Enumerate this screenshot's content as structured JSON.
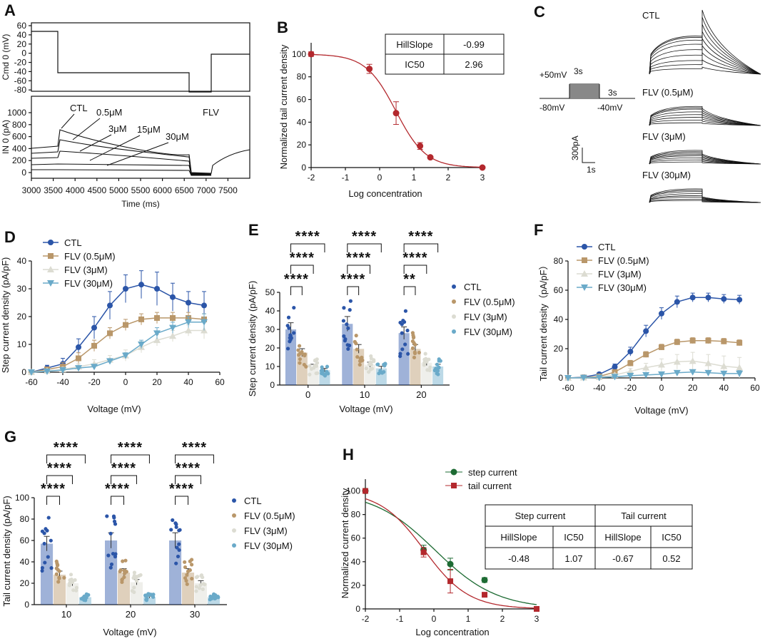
{
  "colors": {
    "ctl": "#2b55a8",
    "c05": "#b9976a",
    "c3": "#dcdcd2",
    "c30": "#6aaac9",
    "fitB": "#b3282d",
    "green": "#1d6b33",
    "red": "#b3282d"
  },
  "panels": {
    "A": {
      "label": "A",
      "top_ylabel": "Cmd 0 (mV)",
      "bot_ylabel": "IN 0 (pA)",
      "xlabel": "Time (ms)",
      "top_yticks": [
        "60",
        "40",
        "20",
        "0",
        "-20",
        "-40",
        "-60",
        "-80"
      ],
      "bot_yticks": [
        "1000",
        "800",
        "600",
        "400",
        "200",
        "0"
      ],
      "xticks": [
        "3000",
        "3500",
        "4000",
        "4500",
        "5000",
        "5500",
        "6000",
        "6500",
        "7000",
        "7500"
      ],
      "annot": {
        "ctl": "CTL",
        "c05": "0.5μM",
        "c3": "3μM",
        "c15": "15μM",
        "c30": "30μM",
        "flv": "FLV"
      }
    },
    "B": {
      "label": "B",
      "xlabel": "Log concentration",
      "ylabel": "Normalized tail current density",
      "table": [
        [
          "HillSlope",
          "-0.99"
        ],
        [
          "IC50",
          "2.96"
        ]
      ]
    },
    "C": {
      "label": "C",
      "traces": [
        "CTL",
        "FLV (0.5μM)",
        "FLV (3μM)",
        "FLV (30μM)"
      ],
      "protocol": {
        "v_hold": "-80mV",
        "v_step": "+50mV",
        "v_tail": "-40mV",
        "t_step": "3s",
        "t_tail": "3s"
      },
      "scale": {
        "amp": "300pA",
        "time": "1s"
      }
    },
    "D": {
      "label": "D",
      "xlabel": "Voltage (mV)",
      "ylabel": "Step current density (pA/pF)",
      "legend": [
        "CTL",
        "FLV (0.5μM)",
        "FLV (3μM)",
        "FLV (30μM)"
      ]
    },
    "E": {
      "label": "E",
      "xlabel": "Voltage (mV)",
      "ylabel": "Step current density (pA/pF)",
      "legend": [
        "CTL",
        "FLV (0.5μM)",
        "FLV (3μM)",
        "FLV (30μM)"
      ]
    },
    "F": {
      "label": "F",
      "xlabel": "Voltage (mV)",
      "ylabel": "Tail current density（pA/pF）",
      "legend": [
        "CTL",
        "FLV (0.5μM)",
        "FLV (3μM)",
        "FLV (30μM)"
      ]
    },
    "G": {
      "label": "G",
      "xlabel": "Voltage (mV)",
      "ylabel": "Tail current density (pA/pF)",
      "legend": [
        "CTL",
        "FLV (0.5μM)",
        "FLV (3μM)",
        "FLV (30μM)"
      ]
    },
    "H": {
      "label": "H",
      "xlabel": "Log concentration",
      "ylabel": "Normalized current density",
      "legend": [
        "step current",
        "tail current"
      ],
      "table": {
        "headers": [
          "Step current",
          "Tail current"
        ],
        "sub": [
          "HillSlope",
          "IC50",
          "HillSlope",
          "IC50"
        ],
        "vals": [
          "-0.48",
          "1.07",
          "-0.67",
          "0.52"
        ]
      }
    }
  },
  "chart_data": [
    {
      "panel": "B",
      "type": "scatter",
      "title": "",
      "xlabel": "Log concentration",
      "ylabel": "Normalized tail current density",
      "xlim": [
        -2,
        3
      ],
      "ylim": [
        0,
        110
      ],
      "xticks": [
        -2,
        -1,
        0,
        1,
        2,
        3
      ],
      "yticks": [
        0,
        20,
        40,
        60,
        80,
        100
      ],
      "x": [
        -2,
        -0.3,
        0.48,
        1.18,
        1.48,
        3
      ],
      "y": [
        100,
        87,
        48,
        19,
        9,
        0
      ],
      "err": [
        2,
        4,
        10,
        3,
        1,
        0
      ]
    },
    {
      "panel": "D",
      "type": "line",
      "xlabel": "Voltage (mV)",
      "ylabel": "Step current density (pA/pF)",
      "xlim": [
        -60,
        60
      ],
      "ylim": [
        0,
        40
      ],
      "xticks": [
        -60,
        -40,
        -20,
        0,
        20,
        40,
        60
      ],
      "yticks": [
        0,
        10,
        20,
        30,
        40
      ],
      "x": [
        -60,
        -50,
        -40,
        -30,
        -20,
        -10,
        0,
        10,
        20,
        30,
        40,
        50
      ],
      "series": [
        {
          "name": "CTL",
          "values": [
            0,
            1.5,
            3,
            9,
            16,
            24,
            30,
            31.5,
            30,
            27,
            25,
            24
          ],
          "err": [
            0.5,
            1,
            2,
            3,
            4,
            5,
            5,
            5,
            6,
            5,
            4,
            5
          ]
        },
        {
          "name": "FLV (0.5μM)",
          "values": [
            0,
            1,
            2,
            5,
            9.5,
            14,
            17,
            19,
            19.5,
            19.5,
            19.5,
            19
          ],
          "err": [
            0.3,
            0.8,
            1.5,
            2,
            2,
            2,
            2,
            2,
            2,
            2,
            2,
            2
          ]
        },
        {
          "name": "FLV (3μM)",
          "values": [
            0,
            0.5,
            1,
            2,
            3,
            4.5,
            6,
            9,
            11.5,
            13,
            15,
            15
          ],
          "err": [
            0.3,
            0.5,
            0.8,
            1,
            1.5,
            1.5,
            2,
            2,
            2,
            2,
            2,
            3
          ]
        },
        {
          "name": "FLV (30μM)",
          "values": [
            0,
            0.3,
            0.8,
            1.5,
            2,
            4,
            6,
            10,
            14,
            16,
            18,
            18
          ],
          "err": [
            0.3,
            0.5,
            0.5,
            0.5,
            0.8,
            0.8,
            1,
            1.5,
            2,
            2,
            2,
            3
          ]
        }
      ]
    },
    {
      "panel": "E",
      "type": "bar",
      "xlabel": "Voltage (mV)",
      "ylabel": "Step current density (pA/pF)",
      "categories": [
        "0",
        "10",
        "20"
      ],
      "ylim": [
        0,
        50
      ],
      "yticks": [
        0,
        10,
        20,
        30,
        40,
        50
      ],
      "series": [
        {
          "name": "CTL",
          "values": [
            30,
            33,
            28
          ]
        },
        {
          "name": "FLV (0.5μM)",
          "values": [
            17.5,
            19.5,
            19.5
          ]
        },
        {
          "name": "FLV (3μM)",
          "values": [
            10,
            11,
            12
          ]
        },
        {
          "name": "FLV (30μM)",
          "values": [
            8,
            9,
            10
          ]
        }
      ],
      "significance": [
        [
          "****",
          "****",
          "****"
        ],
        [
          "****",
          "****",
          "****"
        ],
        [
          "**",
          "****",
          "****"
        ]
      ]
    },
    {
      "panel": "F",
      "type": "line",
      "xlabel": "Voltage (mV)",
      "ylabel": "Tail current density（pA/pF）",
      "xlim": [
        -60,
        60
      ],
      "ylim": [
        0,
        80
      ],
      "xticks": [
        -60,
        -40,
        -20,
        0,
        20,
        40,
        60
      ],
      "yticks": [
        0,
        20,
        40,
        60,
        80
      ],
      "x": [
        -60,
        -50,
        -40,
        -30,
        -20,
        -10,
        0,
        10,
        20,
        30,
        40,
        50
      ],
      "series": [
        {
          "name": "CTL",
          "values": [
            0,
            0.5,
            2.5,
            7.5,
            18,
            32,
            44,
            52,
            55,
            55,
            54,
            53.5
          ],
          "err": [
            0.3,
            0.5,
            1,
            2,
            3,
            4,
            4,
            4,
            3,
            3,
            3,
            3
          ]
        },
        {
          "name": "FLV (0.5μM)",
          "values": [
            0,
            0.3,
            1,
            4,
            10,
            16,
            21,
            24.5,
            25.5,
            25.5,
            25,
            24
          ],
          "err": [
            0.3,
            0.3,
            0.5,
            1.5,
            2,
            2,
            2,
            2,
            2,
            2,
            2,
            2
          ]
        },
        {
          "name": "FLV (3μM)",
          "values": [
            0,
            0.2,
            0.5,
            2,
            4.5,
            7,
            9,
            11,
            11.5,
            10,
            8,
            7
          ],
          "err": [
            0.3,
            0.3,
            0.5,
            1,
            2,
            3,
            4,
            5,
            6,
            6,
            7,
            7
          ]
        },
        {
          "name": "FLV (30μM)",
          "values": [
            0,
            0.1,
            0.3,
            0.8,
            1.5,
            2,
            2.5,
            3.5,
            4,
            3.5,
            3,
            3
          ],
          "err": [
            0.2,
            0.2,
            0.3,
            0.5,
            0.8,
            1,
            1,
            1,
            1,
            1,
            1,
            2
          ]
        }
      ]
    },
    {
      "panel": "G",
      "type": "bar",
      "xlabel": "Voltage (mV)",
      "ylabel": "Tail current density (pA/pF)",
      "categories": [
        "10",
        "20",
        "30"
      ],
      "ylim": [
        0,
        100
      ],
      "yticks": [
        0,
        20,
        40,
        60,
        80,
        100
      ],
      "series": [
        {
          "name": "CTL",
          "values": [
            57,
            60,
            60
          ]
        },
        {
          "name": "FLV (0.5μM)",
          "values": [
            28,
            30,
            30
          ]
        },
        {
          "name": "FLV (3μM)",
          "values": [
            20,
            21,
            20
          ]
        },
        {
          "name": "FLV (30μM)",
          "values": [
            7,
            7,
            7
          ]
        }
      ],
      "significance": [
        [
          "****",
          "****",
          "****"
        ],
        [
          "****",
          "****",
          "****"
        ],
        [
          "****",
          "****",
          "****"
        ]
      ]
    },
    {
      "panel": "H",
      "type": "scatter",
      "xlabel": "Log concentration",
      "ylabel": "Normalized current density",
      "xlim": [
        -2,
        3
      ],
      "ylim": [
        0,
        110
      ],
      "xticks": [
        -2,
        -1,
        0,
        1,
        2,
        3
      ],
      "yticks": [
        0,
        20,
        40,
        60,
        80,
        100
      ],
      "series": [
        {
          "name": "step current",
          "x": [
            -2,
            -0.3,
            0.48,
            1.48
          ],
          "y": [
            100,
            50,
            38,
            24.5
          ],
          "err": [
            2,
            4,
            5,
            2
          ],
          "hill": -0.48,
          "ic50": 1.07
        },
        {
          "name": "tail current",
          "x": [
            -2,
            -0.3,
            0.48,
            1.48,
            3
          ],
          "y": [
            100,
            48,
            23.5,
            12,
            0
          ],
          "err": [
            2,
            4,
            10,
            1,
            0
          ],
          "hill": -0.67,
          "ic50": 0.52
        }
      ]
    }
  ]
}
